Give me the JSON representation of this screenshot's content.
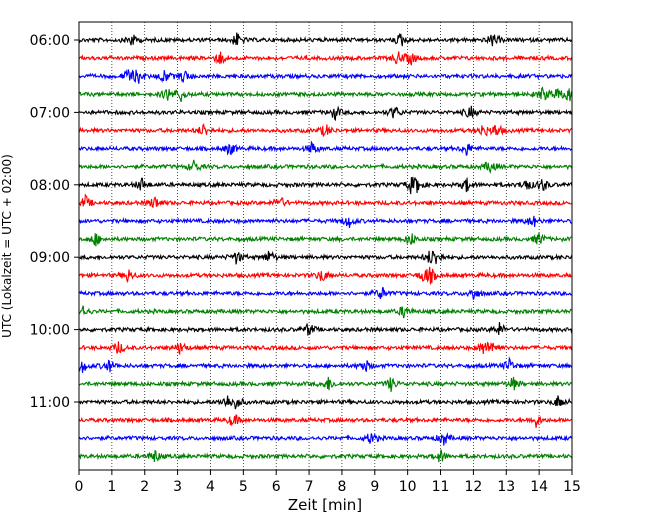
{
  "chart_data": {
    "type": "line",
    "title": "",
    "xlabel": "Zeit  [min]",
    "ylabel": "UTC (Lokalzeit = UTC + 02:00)",
    "xlim": [
      0,
      15
    ],
    "x_ticks": [
      "0",
      "1",
      "2",
      "3",
      "4",
      "5",
      "6",
      "7",
      "8",
      "9",
      "10",
      "11",
      "12",
      "13",
      "14",
      "15"
    ],
    "y_ticks": [
      {
        "label": "06:00",
        "row": 0
      },
      {
        "label": "07:00",
        "row": 4
      },
      {
        "label": "08:00",
        "row": 8
      },
      {
        "label": "09:00",
        "row": 12
      },
      {
        "label": "10:00",
        "row": 16
      },
      {
        "label": "11:00",
        "row": 20
      }
    ],
    "row_interval_minutes": 15,
    "row_count": 24,
    "start_time_utc": "06:00",
    "grid": "vertical dotted at each minute",
    "trace_colors": [
      "#000000",
      "#ff0000",
      "#0000ff",
      "#008000"
    ],
    "events": [
      {
        "row": 0,
        "minutes": [
          1.6,
          4.8,
          9.8,
          12.6
        ]
      },
      {
        "row": 1,
        "minutes": [
          4.3,
          9.7,
          10.1
        ]
      },
      {
        "row": 2,
        "minutes": [
          1.5,
          1.8,
          2.6,
          3.2
        ]
      },
      {
        "row": 3,
        "minutes": [
          2.7,
          3.1,
          14.1,
          14.5,
          14.9
        ]
      },
      {
        "row": 4,
        "minutes": [
          7.8,
          9.6,
          11.9
        ]
      },
      {
        "row": 5,
        "minutes": [
          3.8,
          7.5,
          12.3,
          12.7
        ]
      },
      {
        "row": 6,
        "minutes": [
          4.6,
          7.1,
          11.8
        ]
      },
      {
        "row": 7,
        "minutes": [
          3.5,
          12.5
        ]
      },
      {
        "row": 8,
        "minutes": [
          1.9,
          10.1,
          10.3,
          11.8,
          13.6,
          14.1
        ]
      },
      {
        "row": 9,
        "minutes": [
          0.2,
          2.3,
          6.1
        ]
      },
      {
        "row": 10,
        "minutes": [
          8.2,
          13.8
        ]
      },
      {
        "row": 11,
        "minutes": [
          0.5,
          10.1,
          14.0
        ]
      },
      {
        "row": 12,
        "minutes": [
          4.8,
          5.8,
          10.7,
          10.9
        ]
      },
      {
        "row": 13,
        "minutes": [
          1.5,
          7.4,
          10.5,
          10.7
        ]
      },
      {
        "row": 14,
        "minutes": [
          9.2,
          12.0
        ]
      },
      {
        "row": 15,
        "minutes": [
          0.1,
          9.9
        ]
      },
      {
        "row": 16,
        "minutes": [
          7.0,
          12.8
        ]
      },
      {
        "row": 17,
        "minutes": [
          1.2,
          3.1,
          12.3,
          12.6
        ]
      },
      {
        "row": 18,
        "minutes": [
          0.1,
          0.9,
          8.7,
          13.1
        ]
      },
      {
        "row": 19,
        "minutes": [
          7.6,
          9.5,
          13.2
        ]
      },
      {
        "row": 20,
        "minutes": [
          4.5,
          4.8,
          14.6
        ]
      },
      {
        "row": 21,
        "minutes": [
          4.7,
          13.9
        ]
      },
      {
        "row": 22,
        "minutes": [
          8.9,
          11.1
        ]
      },
      {
        "row": 23,
        "minutes": [
          2.3,
          11.0
        ]
      }
    ]
  }
}
